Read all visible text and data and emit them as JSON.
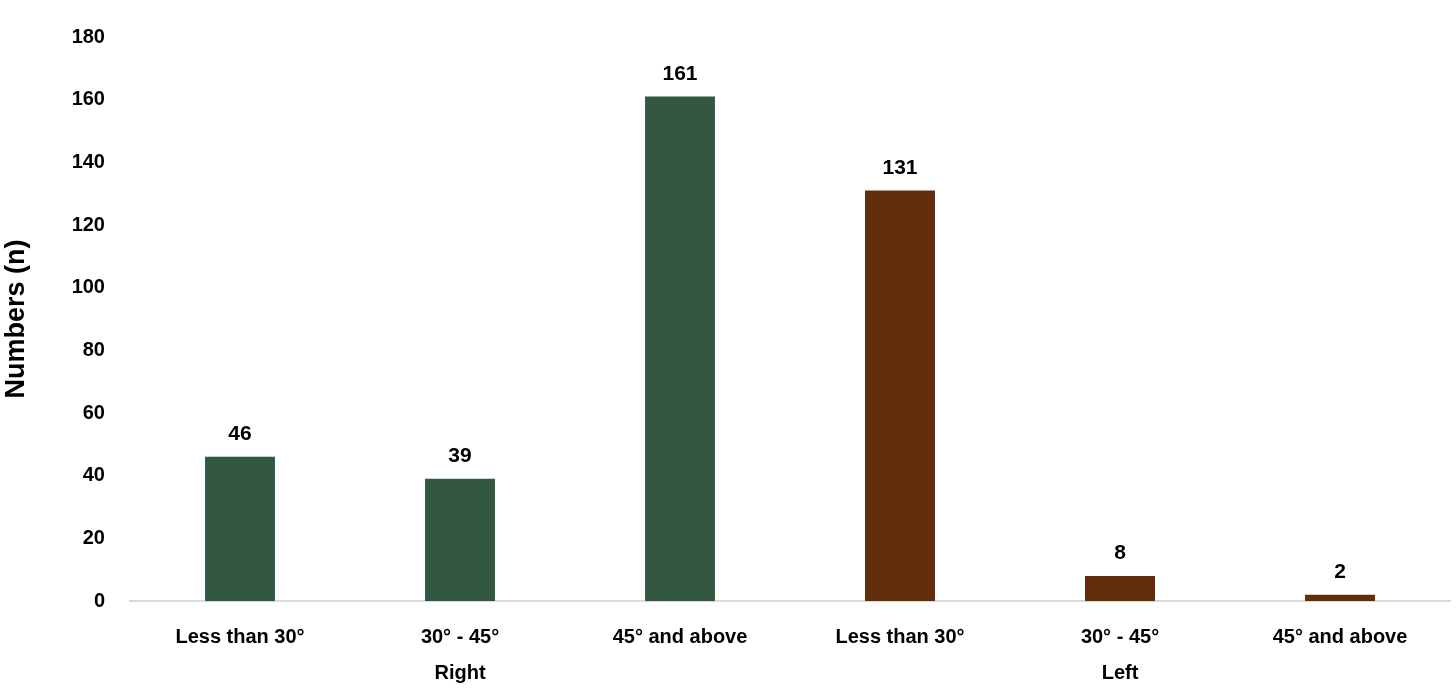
{
  "chart_data": {
    "type": "bar",
    "ylabel": "Numbers (n)",
    "categories": [
      "Less than 30°",
      "30° - 45°",
      "45° and above",
      "Less than 30°",
      "30° - 45°",
      "45° and above"
    ],
    "series": [
      {
        "name": "Right",
        "color": "#335842",
        "values": [
          46,
          39,
          161,
          null,
          null,
          null
        ]
      },
      {
        "name": "Left",
        "color": "#622d0b",
        "values": [
          null,
          null,
          null,
          131,
          8,
          2
        ]
      }
    ],
    "ylim": [
      0,
      180
    ],
    "yticks": [
      0,
      20,
      40,
      60,
      80,
      100,
      120,
      140,
      160,
      180
    ],
    "grid": false,
    "legend": false,
    "data_labels": true
  }
}
